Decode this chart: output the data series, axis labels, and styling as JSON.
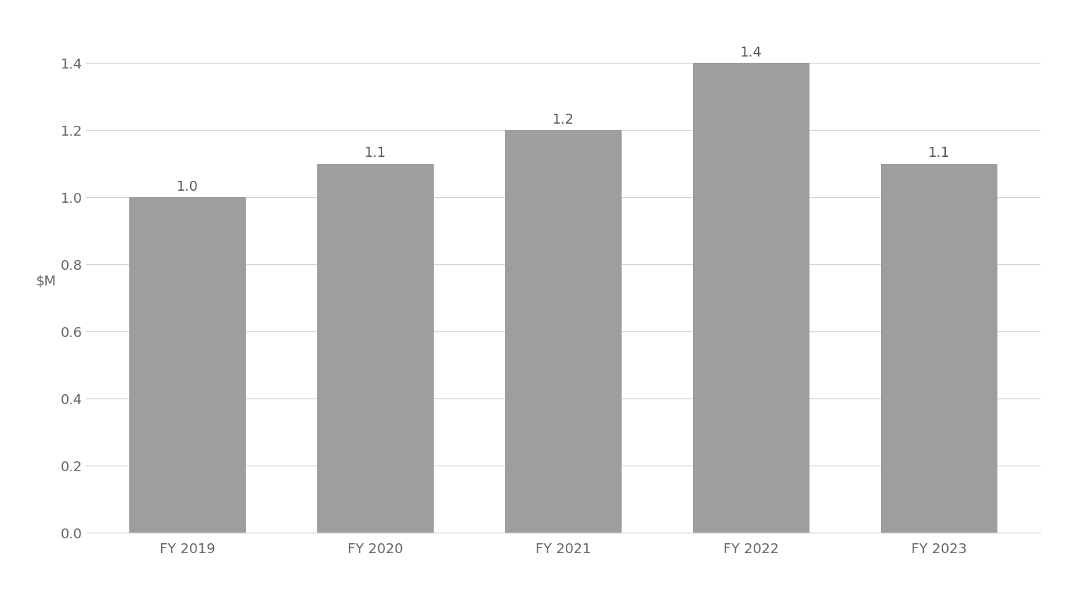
{
  "categories": [
    "FY 2019",
    "FY 2020",
    "FY 2021",
    "FY 2022",
    "FY 2023"
  ],
  "values": [
    1.0,
    1.1,
    1.2,
    1.4,
    1.1
  ],
  "bar_color": "#9E9E9E",
  "ylim": [
    0,
    1.5
  ],
  "yticks": [
    0.0,
    0.2,
    0.4,
    0.6,
    0.8,
    1.0,
    1.2,
    1.4
  ],
  "background_color": "#ffffff",
  "grid_color": "#d4d4d4",
  "label_fontsize": 14,
  "tick_fontsize": 14,
  "ylabel_fontsize": 14,
  "bar_width": 0.62
}
